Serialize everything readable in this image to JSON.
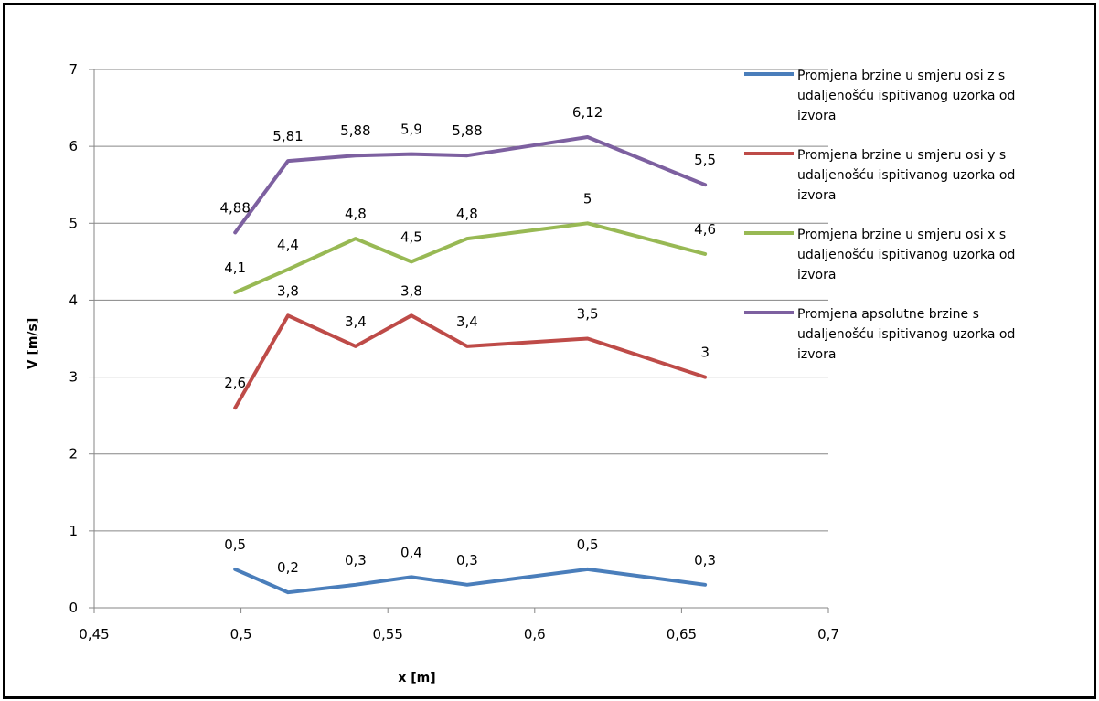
{
  "chart_data": {
    "type": "line",
    "title": "",
    "xlabel": "x [m]",
    "ylabel": "V [m/s]",
    "xlim": [
      0.45,
      0.7
    ],
    "ylim": [
      0,
      7
    ],
    "grid": "horizontal",
    "legend_position": "right",
    "x_ticks": [
      "0,45",
      "0,5",
      "0,55",
      "0,6",
      "0,65",
      "0,7"
    ],
    "x_tick_values": [
      0.45,
      0.5,
      0.55,
      0.6,
      0.65,
      0.7
    ],
    "y_ticks": [
      "0",
      "1",
      "2",
      "3",
      "4",
      "5",
      "6",
      "7"
    ],
    "y_tick_values": [
      0,
      1,
      2,
      3,
      4,
      5,
      6,
      7
    ],
    "x": [
      0.498,
      0.516,
      0.539,
      0.558,
      0.577,
      0.618,
      0.658
    ],
    "series": [
      {
        "name": "Promjena brzine u smjeru osi z s udaljenošću ispitivanog uzorka od izvora",
        "legend_lines": [
          "Promjena brzine u smjeru osi z s",
          "udaljenošću ispitivanog uzorka od",
          "izvora"
        ],
        "color": "#4a7ebb",
        "values": [
          0.5,
          0.2,
          0.3,
          0.4,
          0.3,
          0.5,
          0.3
        ],
        "labels": [
          "0,5",
          "0,2",
          "0,3",
          "0,4",
          "0,3",
          "0,5",
          "0,3"
        ]
      },
      {
        "name": "Promjena brzine u smjeru osi y s udaljenošću ispitivanog uzorka od izvora",
        "legend_lines": [
          "Promjena brzine u smjeru osi y s",
          "udaljenošću ispitivanog uzorka od",
          "izvora"
        ],
        "color": "#be4b48",
        "values": [
          2.6,
          3.8,
          3.4,
          3.8,
          3.4,
          3.5,
          3.0
        ],
        "labels": [
          "2,6",
          "3,8",
          "3,4",
          "3,8",
          "3,4",
          "3,5",
          "3"
        ]
      },
      {
        "name": "Promjena brzine u smjeru osi x s udaljenošću ispitivanog uzorka od izvora",
        "legend_lines": [
          "Promjena brzine u smjeru osi x s",
          "udaljenošću ispitivanog uzorka od",
          "izvora"
        ],
        "color": "#98b954",
        "values": [
          4.1,
          4.4,
          4.8,
          4.5,
          4.8,
          5.0,
          4.6
        ],
        "labels": [
          "4,1",
          "4,4",
          "4,8",
          "4,5",
          "4,8",
          "5",
          "4,6"
        ]
      },
      {
        "name": "Promjena apsolutne brzine s udaljenošću ispitivanog uzorka od izvora",
        "legend_lines": [
          "Promjena apsolutne brzine s",
          "udaljenošću ispitivanog uzorka od",
          "izvora"
        ],
        "color": "#7d60a0",
        "values": [
          4.88,
          5.81,
          5.88,
          5.9,
          5.88,
          6.12,
          5.5
        ],
        "labels": [
          "4,88",
          "5,81",
          "5,88",
          "5,9",
          "5,88",
          "6,12",
          "5,5"
        ]
      }
    ]
  }
}
